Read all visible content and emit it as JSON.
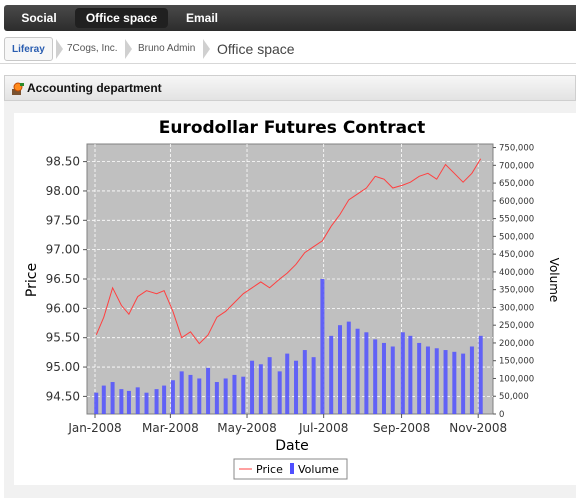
{
  "topnav": {
    "tabs": [
      {
        "label": "Social",
        "active": false
      },
      {
        "label": "Office space",
        "active": true
      },
      {
        "label": "Email",
        "active": false
      }
    ]
  },
  "breadcrumb": {
    "items": [
      "Liferay",
      "7Cogs, Inc.",
      "Bruno Admin",
      "Office space"
    ]
  },
  "portlet": {
    "title": "Accounting department",
    "icon": "calculator-icon"
  },
  "colors": {
    "price": "#ff4040",
    "volume": "#5050ff",
    "plot_bg": "#c0c0c0"
  },
  "chart_data": {
    "type": "line",
    "title": "Eurodollar Futures Contract",
    "xlabel": "Date",
    "ylabel": "Price",
    "y2label": "Volume",
    "x_ticks": [
      "Jan-2008",
      "Mar-2008",
      "May-2008",
      "Jul-2008",
      "Sep-2008",
      "Nov-2008"
    ],
    "y_ticks": [
      "94.50",
      "95.00",
      "95.50",
      "96.00",
      "96.50",
      "97.00",
      "97.50",
      "98.00",
      "98.50"
    ],
    "y2_ticks": [
      "0",
      "50,000",
      "100,000",
      "150,000",
      "200,000",
      "250,000",
      "300,000",
      "350,000",
      "400,000",
      "450,000",
      "500,000",
      "550,000",
      "600,000",
      "650,000",
      "700,000",
      "750,000"
    ],
    "ylim": [
      94.2,
      98.8
    ],
    "y2lim": [
      0,
      760000
    ],
    "grid": true,
    "legend_position": "bottom",
    "series": [
      {
        "name": "Price",
        "axis": "left",
        "x": [
          "2008-01-02",
          "2008-01-08",
          "2008-01-15",
          "2008-01-22",
          "2008-01-28",
          "2008-02-04",
          "2008-02-11",
          "2008-02-19",
          "2008-02-25",
          "2008-03-03",
          "2008-03-10",
          "2008-03-17",
          "2008-03-24",
          "2008-03-31",
          "2008-04-07",
          "2008-04-14",
          "2008-04-21",
          "2008-04-28",
          "2008-05-05",
          "2008-05-12",
          "2008-05-19",
          "2008-05-27",
          "2008-06-02",
          "2008-06-09",
          "2008-06-16",
          "2008-06-23",
          "2008-06-30",
          "2008-07-07",
          "2008-07-14",
          "2008-07-21",
          "2008-07-28",
          "2008-08-04",
          "2008-08-11",
          "2008-08-18",
          "2008-08-25",
          "2008-09-02",
          "2008-09-08",
          "2008-09-15",
          "2008-09-22",
          "2008-09-29",
          "2008-10-06",
          "2008-10-13",
          "2008-10-20",
          "2008-10-27",
          "2008-11-03"
        ],
        "values": [
          95.55,
          95.85,
          96.35,
          96.05,
          95.9,
          96.2,
          96.3,
          96.25,
          96.3,
          95.95,
          95.5,
          95.6,
          95.4,
          95.55,
          95.85,
          95.95,
          96.1,
          96.25,
          96.35,
          96.45,
          96.35,
          96.5,
          96.6,
          96.75,
          96.95,
          97.05,
          97.15,
          97.4,
          97.6,
          97.85,
          97.95,
          98.05,
          98.25,
          98.2,
          98.05,
          98.1,
          98.15,
          98.25,
          98.3,
          98.2,
          98.45,
          98.3,
          98.15,
          98.3,
          98.55
        ]
      },
      {
        "name": "Volume",
        "axis": "right",
        "type": "bar",
        "x": [
          "2008-01-02",
          "2008-01-08",
          "2008-01-15",
          "2008-01-22",
          "2008-01-28",
          "2008-02-04",
          "2008-02-11",
          "2008-02-19",
          "2008-02-25",
          "2008-03-03",
          "2008-03-10",
          "2008-03-17",
          "2008-03-24",
          "2008-03-31",
          "2008-04-07",
          "2008-04-14",
          "2008-04-21",
          "2008-04-28",
          "2008-05-05",
          "2008-05-12",
          "2008-05-19",
          "2008-05-27",
          "2008-06-02",
          "2008-06-09",
          "2008-06-16",
          "2008-06-23",
          "2008-06-30",
          "2008-07-07",
          "2008-07-14",
          "2008-07-21",
          "2008-07-28",
          "2008-08-04",
          "2008-08-11",
          "2008-08-18",
          "2008-08-25",
          "2008-09-02",
          "2008-09-08",
          "2008-09-15",
          "2008-09-22",
          "2008-09-29",
          "2008-10-06",
          "2008-10-13",
          "2008-10-20",
          "2008-10-27",
          "2008-11-03"
        ],
        "values": [
          60000,
          80000,
          90000,
          70000,
          65000,
          75000,
          60000,
          70000,
          80000,
          95000,
          120000,
          110000,
          100000,
          130000,
          90000,
          100000,
          110000,
          105000,
          150000,
          140000,
          160000,
          120000,
          170000,
          150000,
          180000,
          160000,
          380000,
          220000,
          250000,
          260000,
          240000,
          230000,
          210000,
          200000,
          190000,
          230000,
          220000,
          200000,
          190000,
          185000,
          180000,
          175000,
          170000,
          190000,
          220000
        ]
      }
    ]
  }
}
